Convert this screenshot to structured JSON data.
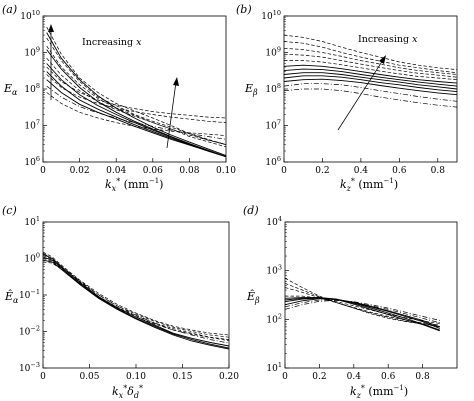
{
  "chart_data": [
    {
      "panel": "(a)",
      "type": "line",
      "ylabel": "E_α",
      "xlabel": "k_x^* (mm^{-1})",
      "xscale": "linear",
      "yscale": "log",
      "xlim": [
        0,
        0.1
      ],
      "ylim": [
        1000000,
        10000000000
      ],
      "xticks": [
        "0",
        "0.02",
        "0.04",
        "0.06",
        "0.08",
        "0.10"
      ],
      "yticks": [
        "10^6",
        "10^7",
        "10^8",
        "10^9",
        "10^10"
      ],
      "annotation": "Increasing x",
      "x": [
        0.002,
        0.01,
        0.02,
        0.03,
        0.04,
        0.05,
        0.06,
        0.07,
        0.08,
        0.09,
        0.1
      ],
      "series": [
        {
          "style": "dashed",
          "values": [
            5000000000.0,
            900000000.0,
            200000000.0,
            80000000.0,
            40000000.0,
            25000000.0,
            16000000.0,
            10000000.0,
            6000000.0,
            4000000.0,
            3000000.0
          ]
        },
        {
          "style": "dashed",
          "values": [
            2500000000.0,
            600000000.0,
            160000000.0,
            60000000.0,
            35000000.0,
            20000000.0,
            13000000.0,
            9000000.0,
            6000000.0,
            4200000.0,
            3000000.0
          ]
        },
        {
          "style": "dashed",
          "values": [
            1500000000.0,
            400000000.0,
            130000000.0,
            55000000.0,
            30000000.0,
            19000000.0,
            12000000.0,
            8000000.0,
            5000000.0,
            3600000.0,
            2600000.0
          ]
        },
        {
          "style": "dashed",
          "values": [
            700000000.0,
            240000000.0,
            90000000.0,
            45000000.0,
            27000000.0,
            18000000.0,
            12000000.0,
            8000000.0,
            5500000.0,
            4000000.0,
            3000000.0
          ]
        },
        {
          "style": "solid",
          "values": [
            3500000000.0,
            700000000.0,
            180000000.0,
            65000000.0,
            30000000.0,
            16000000.0,
            9000000.0,
            5500000.0,
            3500000.0,
            2300000.0,
            1500000.0
          ]
        },
        {
          "style": "solid",
          "values": [
            1200000000.0,
            350000000.0,
            110000000.0,
            45000000.0,
            23000000.0,
            13000000.0,
            8000000.0,
            5000000.0,
            3200000.0,
            2100000.0,
            1400000.0
          ]
        },
        {
          "style": "solid",
          "values": [
            500000000.0,
            180000000.0,
            70000000.0,
            35000000.0,
            20000000.0,
            12000000.0,
            7500000.0,
            4800000.0,
            3100000.0,
            2100000.0,
            1400000.0
          ]
        },
        {
          "style": "solid",
          "values": [
            300000000.0,
            120000000.0,
            50000000.0,
            28000000.0,
            17000000.0,
            10500000.0,
            6800000.0,
            4500000.0,
            3000000.0,
            2000000.0,
            1400000.0
          ]
        },
        {
          "style": "solid",
          "values": [
            180000000.0,
            80000000.0,
            38000000.0,
            23000000.0,
            15000000.0,
            9500000.0,
            6300000.0,
            4200000.0,
            2900000.0,
            2000000.0,
            1400000.0
          ]
        },
        {
          "style": "dashdot",
          "values": [
            120000000.0,
            60000000.0,
            33000000.0,
            22000000.0,
            16000000.0,
            12000000.0,
            9500000.0,
            7500000.0,
            6000000.0,
            5000000.0,
            4200000.0
          ]
        },
        {
          "style": "dashed",
          "values": [
            250000000.0,
            110000000.0,
            60000000.0,
            40000000.0,
            30000000.0,
            24000000.0,
            20000000.0,
            17000000.0,
            15000000.0,
            13000000.0,
            12000000.0
          ]
        },
        {
          "style": "dashed",
          "values": [
            400000000.0,
            160000000.0,
            80000000.0,
            50000000.0,
            36000000.0,
            29000000.0,
            24000000.0,
            21000000.0,
            19000000.0,
            17000000.0,
            16000000.0
          ]
        },
        {
          "style": "dashed",
          "values": [
            80000000.0,
            40000000.0,
            23000000.0,
            16000000.0,
            12000000.0,
            9500000.0,
            8000000.0,
            7000000.0,
            6300000.0,
            5800000.0,
            5300000.0
          ]
        }
      ]
    },
    {
      "panel": "(b)",
      "type": "line",
      "ylabel": "E_β",
      "xlabel": "k_z^* (mm^{-1})",
      "xscale": "linear",
      "yscale": "log",
      "xlim": [
        0,
        0.9
      ],
      "ylim": [
        1000000,
        10000000000
      ],
      "xticks": [
        "0",
        "0.2",
        "0.4",
        "0.6",
        "0.8"
      ],
      "yticks": [
        "10^6",
        "10^7",
        "10^8",
        "10^9",
        "10^10"
      ],
      "annotation": "Increasing x",
      "x": [
        0.0,
        0.1,
        0.2,
        0.3,
        0.4,
        0.5,
        0.6,
        0.7,
        0.8,
        0.9
      ],
      "series": [
        {
          "style": "dashed",
          "values": [
            3000000000.0,
            2600000000.0,
            2000000000.0,
            1400000000.0,
            1000000000.0,
            750000000.0,
            550000000.0,
            450000000.0,
            380000000.0,
            340000000.0
          ]
        },
        {
          "style": "dashed",
          "values": [
            2000000000.0,
            1800000000.0,
            1400000000.0,
            1000000000.0,
            750000000.0,
            580000000.0,
            450000000.0,
            380000000.0,
            320000000.0,
            280000000.0
          ]
        },
        {
          "style": "dashed",
          "values": [
            1300000000.0,
            1200000000.0,
            1000000000.0,
            780000000.0,
            600000000.0,
            480000000.0,
            380000000.0,
            320000000.0,
            280000000.0,
            250000000.0
          ]
        },
        {
          "style": "dashed",
          "values": [
            900000000.0,
            850000000.0,
            750000000.0,
            600000000.0,
            480000000.0,
            390000000.0,
            320000000.0,
            270000000.0,
            240000000.0,
            210000000.0
          ]
        },
        {
          "style": "dashed",
          "values": [
            600000000.0,
            600000000.0,
            550000000.0,
            460000000.0,
            380000000.0,
            310000000.0,
            260000000.0,
            220000000.0,
            200000000.0,
            180000000.0
          ]
        },
        {
          "style": "solid",
          "values": [
            420000000.0,
            450000000.0,
            420000000.0,
            360000000.0,
            300000000.0,
            250000000.0,
            210000000.0,
            180000000.0,
            160000000.0,
            145000000.0
          ]
        },
        {
          "style": "solid",
          "values": [
            320000000.0,
            350000000.0,
            340000000.0,
            300000000.0,
            250000000.0,
            210000000.0,
            180000000.0,
            155000000.0,
            135000000.0,
            120000000.0
          ]
        },
        {
          "style": "solid",
          "values": [
            250000000.0,
            280000000.0,
            280000000.0,
            250000000.0,
            210000000.0,
            180000000.0,
            155000000.0,
            130000000.0,
            115000000.0,
            100000000.0
          ]
        },
        {
          "style": "solid",
          "values": [
            200000000.0,
            230000000.0,
            230000000.0,
            210000000.0,
            180000000.0,
            150000000.0,
            130000000.0,
            110000000.0,
            95000000.0,
            85000000.0
          ]
        },
        {
          "style": "solid",
          "values": [
            160000000.0,
            180000000.0,
            185000000.0,
            170000000.0,
            150000000.0,
            125000000.0,
            105000000.0,
            90000000.0,
            78000000.0,
            70000000.0
          ]
        },
        {
          "style": "dashdot",
          "values": [
            120000000.0,
            140000000.0,
            140000000.0,
            130000000.0,
            110000000.0,
            90000000.0,
            75000000.0,
            62000000.0,
            53000000.0,
            46000000.0
          ]
        },
        {
          "style": "dashdot",
          "values": [
            90000000.0,
            100000000.0,
            100000000.0,
            90000000.0,
            75000000.0,
            60000000.0,
            50000000.0,
            42000000.0,
            36000000.0,
            32000000.0
          ]
        }
      ]
    },
    {
      "panel": "(c)",
      "type": "line",
      "ylabel": "Ê_α",
      "xlabel": "k_x^* δ_d^*",
      "xscale": "linear",
      "yscale": "log",
      "xlim": [
        0,
        0.2
      ],
      "ylim": [
        0.001,
        10
      ],
      "xticks": [
        "0",
        "0.05",
        "0.10",
        "0.15",
        "0.20"
      ],
      "yticks": [
        "10^-3",
        "10^-2",
        "10^-1",
        "10^0",
        "10^1"
      ],
      "x": [
        0.0,
        0.01,
        0.02,
        0.04,
        0.06,
        0.08,
        0.1,
        0.12,
        0.14,
        0.16,
        0.18,
        0.2
      ],
      "series": [
        {
          "style": "solid",
          "values": [
            1.3,
            1.0,
            0.6,
            0.22,
            0.09,
            0.045,
            0.025,
            0.015,
            0.009,
            0.0065,
            0.005,
            0.004
          ]
        },
        {
          "style": "solid",
          "values": [
            1.1,
            0.9,
            0.55,
            0.2,
            0.085,
            0.042,
            0.023,
            0.014,
            0.0085,
            0.006,
            0.0045,
            0.0035
          ]
        },
        {
          "style": "solid",
          "values": [
            0.9,
            0.8,
            0.5,
            0.19,
            0.08,
            0.04,
            0.022,
            0.013,
            0.008,
            0.0055,
            0.0042,
            0.0033
          ]
        },
        {
          "style": "dashed",
          "values": [
            1.5,
            1.1,
            0.65,
            0.25,
            0.11,
            0.055,
            0.032,
            0.02,
            0.014,
            0.011,
            0.009,
            0.008
          ]
        },
        {
          "style": "dashed",
          "values": [
            1.2,
            0.95,
            0.58,
            0.23,
            0.1,
            0.05,
            0.03,
            0.019,
            0.013,
            0.01,
            0.008,
            0.007
          ]
        },
        {
          "style": "dashed",
          "values": [
            1.0,
            0.85,
            0.52,
            0.21,
            0.09,
            0.046,
            0.027,
            0.017,
            0.012,
            0.009,
            0.007,
            0.006
          ]
        },
        {
          "style": "dashed",
          "values": [
            0.8,
            0.75,
            0.5,
            0.2,
            0.085,
            0.043,
            0.025,
            0.016,
            0.011,
            0.0085,
            0.0068,
            0.0056
          ]
        },
        {
          "style": "dashdot",
          "values": [
            1.4,
            1.0,
            0.6,
            0.24,
            0.1,
            0.05,
            0.028,
            0.017,
            0.011,
            0.008,
            0.006,
            0.0048
          ]
        }
      ]
    },
    {
      "panel": "(d)",
      "type": "line",
      "ylabel": "Ê_β",
      "xlabel": "k_z^* (mm^{-1})",
      "xscale": "linear",
      "yscale": "log",
      "xlim": [
        0,
        1.0
      ],
      "ylim": [
        10,
        10000
      ],
      "xticks": [
        "0",
        "0.2",
        "0.4",
        "0.6",
        "0.8"
      ],
      "yticks": [
        "10^1",
        "10^2",
        "10^3",
        "10^4"
      ],
      "x": [
        0.0,
        0.1,
        0.2,
        0.3,
        0.4,
        0.5,
        0.6,
        0.7,
        0.8,
        0.9
      ],
      "series": [
        {
          "style": "dashed",
          "values": [
            700,
            450,
            300,
            220,
            170,
            130,
            105,
            90,
            80,
            70
          ]
        },
        {
          "style": "dashed",
          "values": [
            550,
            400,
            290,
            220,
            170,
            135,
            110,
            92,
            80,
            72
          ]
        },
        {
          "style": "dashed",
          "values": [
            450,
            360,
            280,
            220,
            175,
            140,
            115,
            97,
            84,
            76
          ]
        },
        {
          "style": "dashed",
          "values": [
            300,
            300,
            270,
            230,
            190,
            155,
            128,
            108,
            93,
            82
          ]
        },
        {
          "style": "solid",
          "values": [
            230,
            260,
            270,
            255,
            220,
            180,
            145,
            115,
            90,
            65
          ]
        },
        {
          "style": "solid",
          "values": [
            250,
            270,
            280,
            260,
            215,
            170,
            135,
            105,
            80,
            60
          ]
        },
        {
          "style": "solid",
          "values": [
            270,
            280,
            280,
            255,
            205,
            160,
            125,
            98,
            78,
            58
          ]
        },
        {
          "style": "solid",
          "values": [
            200,
            240,
            265,
            255,
            225,
            185,
            150,
            120,
            95,
            70
          ]
        },
        {
          "style": "dashdot",
          "values": [
            180,
            220,
            250,
            250,
            225,
            190,
            160,
            130,
            105,
            85
          ]
        },
        {
          "style": "dashdot",
          "values": [
            160,
            200,
            235,
            245,
            230,
            200,
            170,
            140,
            115,
            95
          ]
        }
      ]
    }
  ]
}
